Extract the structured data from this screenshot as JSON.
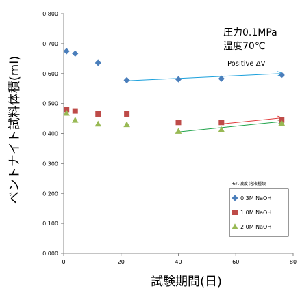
{
  "chart_data": {
    "type": "scatter",
    "title": "",
    "xlabel": "試験期間(日)",
    "ylabel": "ベントナイト試料体積(ml)",
    "xlim": [
      0,
      80
    ],
    "ylim": [
      0.0,
      0.8
    ],
    "x_ticks": [
      "0",
      "20",
      "40",
      "60",
      "80"
    ],
    "y_ticks": [
      "0.000",
      "0.100",
      "0.200",
      "0.300",
      "0.400",
      "0.500",
      "0.600",
      "0.700",
      "0.800"
    ],
    "grid": false,
    "legend": {
      "title": "モル濃度 溶液種類",
      "position": "bottom-right"
    },
    "annotations": {
      "condition_pressure": "圧力0.1MPa",
      "condition_temperature": "温度70℃",
      "trend_note": "Positive ΔV"
    },
    "series": [
      {
        "name": "0.3M NaOH",
        "color": "#4a7ebb",
        "marker": "diamond",
        "points": [
          [
            1,
            0.675
          ],
          [
            4,
            0.667
          ],
          [
            12,
            0.636
          ],
          [
            22,
            0.578
          ],
          [
            40,
            0.581
          ],
          [
            55,
            0.583
          ],
          [
            76,
            0.595
          ]
        ],
        "trend": {
          "from": [
            22,
            0.576
          ],
          "to": [
            76,
            0.6
          ],
          "color": "#1aa0dc"
        }
      },
      {
        "name": "1.0M NaOH",
        "color": "#be4b48",
        "marker": "square",
        "points": [
          [
            1,
            0.48
          ],
          [
            4,
            0.475
          ],
          [
            12,
            0.465
          ],
          [
            22,
            0.465
          ],
          [
            40,
            0.437
          ],
          [
            55,
            0.437
          ],
          [
            76,
            0.445
          ]
        ],
        "trend": {
          "from": [
            55,
            0.432
          ],
          "to": [
            76,
            0.452
          ],
          "color": "#e03c3c"
        }
      },
      {
        "name": "2.0M NaOH",
        "color": "#98b954",
        "marker": "triangle",
        "points": [
          [
            1,
            0.468
          ],
          [
            4,
            0.445
          ],
          [
            12,
            0.432
          ],
          [
            22,
            0.43
          ],
          [
            40,
            0.408
          ],
          [
            55,
            0.413
          ],
          [
            76,
            0.435
          ]
        ],
        "trend": {
          "from": [
            40,
            0.405
          ],
          "to": [
            76,
            0.44
          ],
          "color": "#1fa34a"
        }
      }
    ]
  }
}
